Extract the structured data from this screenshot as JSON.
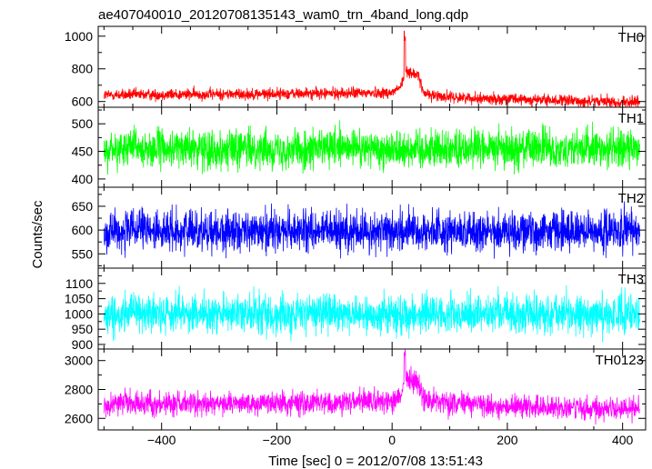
{
  "chart_data": {
    "type": "line",
    "title": "ae407040010_20120708135143_wam0_trn_4band_long.qdp",
    "xlabel": "Time [sec] 0 = 2012/07/08 13:51:43",
    "ylabel": "Counts/sec",
    "xlim": [
      -510,
      440
    ],
    "x_ticks": [
      -400,
      -200,
      0,
      200,
      400
    ],
    "x_tick_labels": [
      "−400",
      "−200",
      "0",
      "200",
      "400"
    ],
    "data_x_range": [
      -500,
      430
    ],
    "grid": false,
    "panels": [
      {
        "name": "TH0",
        "color": "#ff0000",
        "ylim": [
          565,
          1060
        ],
        "y_ticks": [
          600,
          800,
          1000
        ],
        "y_tick_labels": [
          "600",
          "800",
          "1000"
        ],
        "baseline": [
          [
            -500,
            640
          ],
          [
            -100,
            650
          ],
          [
            0,
            655
          ],
          [
            15,
            690
          ],
          [
            25,
            790
          ],
          [
            45,
            760
          ],
          [
            55,
            650
          ],
          [
            100,
            625
          ],
          [
            200,
            615
          ],
          [
            300,
            605
          ],
          [
            430,
            595
          ]
        ],
        "spike": [
          22,
          1060
        ],
        "noise": 25
      },
      {
        "name": "TH1",
        "color": "#00ff00",
        "ylim": [
          385,
          530
        ],
        "y_ticks": [
          400,
          450,
          500
        ],
        "y_tick_labels": [
          "400",
          "450",
          "500"
        ],
        "baseline": [
          [
            -500,
            455
          ],
          [
            430,
            455
          ]
        ],
        "noise": 25
      },
      {
        "name": "TH2",
        "color": "#0000ff",
        "ylim": [
          520,
          690
        ],
        "y_ticks": [
          550,
          600,
          650
        ],
        "y_tick_labels": [
          "550",
          "600",
          "650"
        ],
        "baseline": [
          [
            -500,
            598
          ],
          [
            430,
            598
          ]
        ],
        "noise": 30
      },
      {
        "name": "TH3",
        "color": "#00ffff",
        "ylim": [
          885,
          1150
        ],
        "y_ticks": [
          900,
          950,
          1000,
          1050,
          1100
        ],
        "y_tick_labels": [
          "900",
          "950",
          "1000",
          "1050",
          "1100"
        ],
        "baseline": [
          [
            -500,
            1000
          ],
          [
            430,
            1000
          ]
        ],
        "noise": 45
      },
      {
        "name": "TH0123",
        "color": "#ff00ff",
        "ylim": [
          2520,
          3080
        ],
        "y_ticks": [
          2600,
          2800,
          3000
        ],
        "y_tick_labels": [
          "2600",
          "2800",
          "3000"
        ],
        "baseline": [
          [
            -500,
            2700
          ],
          [
            -100,
            2710
          ],
          [
            0,
            2715
          ],
          [
            15,
            2760
          ],
          [
            25,
            2880
          ],
          [
            45,
            2850
          ],
          [
            55,
            2720
          ],
          [
            200,
            2680
          ],
          [
            430,
            2665
          ]
        ],
        "spike": [
          22,
          3080
        ],
        "noise": 55
      }
    ]
  }
}
